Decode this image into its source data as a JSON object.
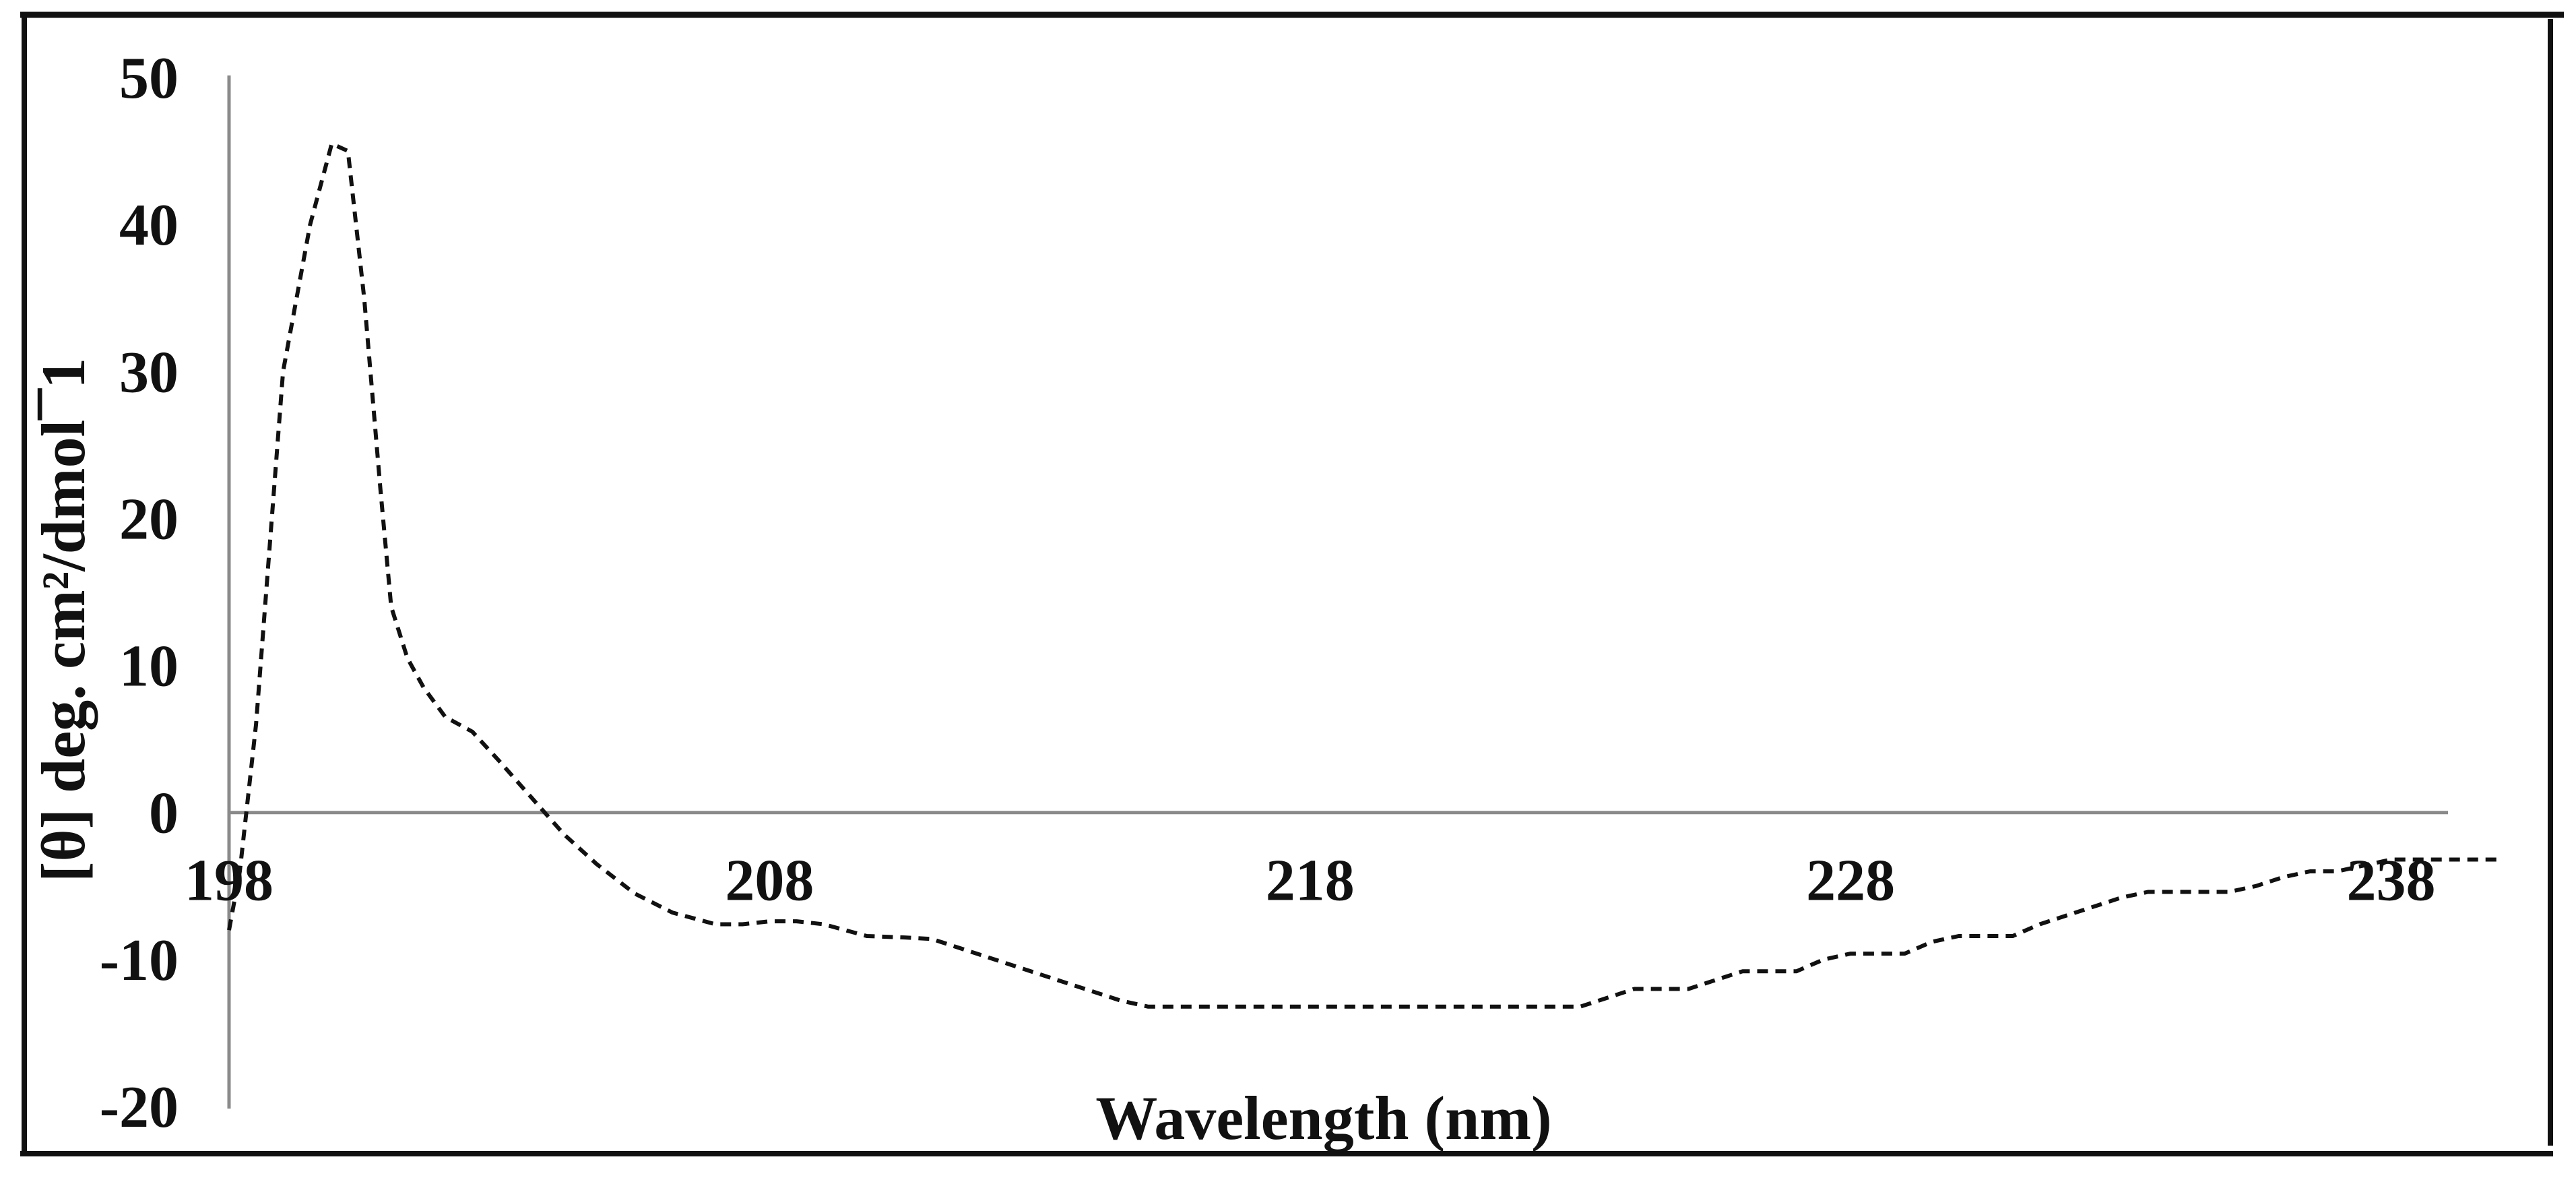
{
  "chart_data": {
    "type": "line",
    "title": "",
    "xlabel": "Wavelength (nm)",
    "ylabel": "[θ] deg. cm²/dmol¯1",
    "xlim": [
      198,
      240
    ],
    "ylim": [
      -20,
      50
    ],
    "x_ticks": [
      "198",
      "208",
      "218",
      "228",
      "238"
    ],
    "y_ticks": [
      "50",
      "40",
      "30",
      "20",
      "10",
      "0",
      "-10",
      "-20"
    ],
    "grid": false,
    "line_style": "dashed",
    "line_color": "#111111",
    "series": [
      {
        "x": [
          198.0,
          198.2,
          198.5,
          199.0,
          199.5,
          199.9,
          200.2,
          200.5,
          200.8,
          201.0,
          201.3,
          201.6,
          202.0,
          202.5,
          203.0,
          203.6,
          204.2,
          204.8,
          205.5,
          206.2,
          207.0,
          207.5,
          208.0,
          208.5,
          209.0,
          209.8,
          210.5,
          211.0,
          211.5,
          212.0,
          212.5,
          213.0,
          213.5,
          214.0,
          214.5,
          215.0,
          215.5,
          216.0,
          216.5,
          217.0,
          218.0,
          219.0,
          220.0,
          221.0,
          222.0,
          223.0,
          223.5,
          224.0,
          224.5,
          225.0,
          225.5,
          226.0,
          226.5,
          227.0,
          227.5,
          228.0,
          228.5,
          229.0,
          229.5,
          230.0,
          230.5,
          231.0,
          231.5,
          232.0,
          232.5,
          233.0,
          233.5,
          234.0,
          234.5,
          235.0,
          235.5,
          236.0,
          236.5,
          237.0,
          237.5,
          238.0,
          238.5,
          239.0,
          239.5,
          240.0
        ],
        "y": [
          -8.0,
          -4.0,
          6.0,
          30.0,
          40.0,
          45.5,
          45.0,
          35.0,
          22.0,
          14.0,
          10.5,
          8.5,
          6.5,
          5.5,
          3.5,
          1.0,
          -1.5,
          -3.5,
          -5.5,
          -6.8,
          -7.6,
          -7.6,
          -7.4,
          -7.4,
          -7.6,
          -8.4,
          -8.5,
          -8.6,
          -9.2,
          -9.8,
          -10.4,
          -11.0,
          -11.6,
          -12.2,
          -12.8,
          -13.2,
          -13.2,
          -13.2,
          -13.2,
          -13.2,
          -13.2,
          -13.2,
          -13.2,
          -13.2,
          -13.2,
          -13.2,
          -12.6,
          -12.0,
          -12.0,
          -12.0,
          -11.4,
          -10.8,
          -10.8,
          -10.8,
          -10.0,
          -9.6,
          -9.6,
          -9.6,
          -8.8,
          -8.4,
          -8.4,
          -8.4,
          -7.6,
          -7.0,
          -6.4,
          -5.8,
          -5.4,
          -5.4,
          -5.4,
          -5.4,
          -5.0,
          -4.4,
          -4.0,
          -4.0,
          -3.6,
          -3.2,
          -3.2,
          -3.2,
          -3.2,
          -3.2
        ]
      }
    ]
  }
}
